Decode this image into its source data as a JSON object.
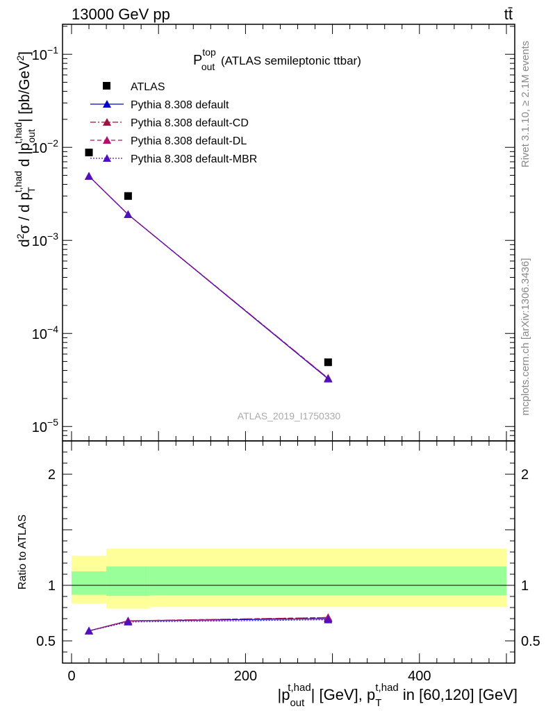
{
  "header": {
    "energy_label": "13000 GeV pp",
    "process_label": "tt̄"
  },
  "side_labels": {
    "rivet": "Rivet 3.1.10, ≥ 2.1M events",
    "mcplots": "mcplots.cern.ch [arXiv:1306.3436]"
  },
  "chart_data": [
    {
      "type": "scatter",
      "panel": "main",
      "title": "P_out^top (ATLAS semileptonic ttbar)",
      "title_main": "P",
      "title_sub": "out",
      "title_sup": "top",
      "title_rest": " (ATLAS semileptonic ttbar)",
      "analysis_id": "ATLAS_2019_I1750330",
      "ylabel": "d²σ / d p_T^{t,had} d |p_out^{t,had}| [pb/GeV²]",
      "yscale": "log",
      "ylim": [
        7e-06,
        0.21
      ],
      "xlim": [
        -15,
        505
      ],
      "y_tick_labels": [
        {
          "base": "10",
          "exp": "−1",
          "value": 0.1
        },
        {
          "base": "10",
          "exp": "−2",
          "value": 0.01
        },
        {
          "base": "10",
          "exp": "−3",
          "value": 0.001
        },
        {
          "base": "10",
          "exp": "−4",
          "value": 0.0001
        },
        {
          "base": "10",
          "exp": "−5",
          "value": 1e-05
        }
      ],
      "legend_position": "top-left",
      "series": [
        {
          "name": "ATLAS",
          "marker": "square",
          "color": "#000000",
          "x": [
            20,
            65,
            295
          ],
          "y": [
            0.0088,
            0.003,
            4.9e-05
          ]
        },
        {
          "name": "Pythia 8.308 default",
          "marker": "triangle",
          "line": "solid",
          "color": "#0000cc",
          "x": [
            20,
            65,
            295
          ],
          "y": [
            0.0049,
            0.0019,
            3.25e-05
          ]
        },
        {
          "name": "Pythia 8.308 default-CD",
          "marker": "triangle",
          "line": "dashdot",
          "color": "#a01040",
          "x": [
            20,
            65,
            295
          ],
          "y": [
            0.0049,
            0.0019,
            3.3e-05
          ]
        },
        {
          "name": "Pythia 8.308 default-DL",
          "marker": "triangle",
          "line": "dashed",
          "color": "#b0106a",
          "x": [
            20,
            65,
            295
          ],
          "y": [
            0.0049,
            0.0019,
            3.3e-05
          ]
        },
        {
          "name": "Pythia 8.308 default-MBR",
          "marker": "triangle",
          "line": "dotted",
          "color": "#5010c0",
          "x": [
            20,
            65,
            295
          ],
          "y": [
            0.0049,
            0.0019,
            3.25e-05
          ]
        }
      ]
    },
    {
      "type": "line",
      "panel": "ratio",
      "ylabel": "Ratio to ATLAS",
      "xlabel": "|p_out^{t,had}| [GeV], p_T^{t,had} in [60,120] [GeV]",
      "xlim": [
        -15,
        505
      ],
      "ylim": [
        0.3,
        2.3
      ],
      "x_tick_labels": [
        "0",
        "200",
        "400"
      ],
      "y_tick_labels": [
        "0.5",
        "1",
        "2"
      ],
      "bands": [
        {
          "x_lo": 0,
          "x_hi": 40,
          "stat_lo": 0.915,
          "stat_hi": 1.125,
          "tot_lo": 0.835,
          "tot_hi": 1.265
        },
        {
          "x_lo": 40,
          "x_hi": 90,
          "stat_lo": 0.905,
          "stat_hi": 1.17,
          "tot_lo": 0.79,
          "tot_hi": 1.33
        },
        {
          "x_lo": 90,
          "x_hi": 500,
          "stat_lo": 0.91,
          "stat_hi": 1.17,
          "tot_lo": 0.805,
          "tot_hi": 1.33
        }
      ],
      "band_colors": {
        "stat": "#99ff99",
        "total": "#ffff99"
      },
      "series": [
        {
          "name": "Pythia 8.308 default",
          "color": "#0000cc",
          "line": "solid",
          "x": [
            20,
            65,
            295
          ],
          "y": [
            0.59,
            0.68,
            0.7
          ]
        },
        {
          "name": "Pythia 8.308 default-CD",
          "color": "#a01040",
          "line": "dashdot",
          "x": [
            20,
            65,
            295
          ],
          "y": [
            0.59,
            0.68,
            0.71
          ]
        },
        {
          "name": "Pythia 8.308 default-DL",
          "color": "#b0106a",
          "line": "dashed",
          "x": [
            20,
            65,
            295
          ],
          "y": [
            0.59,
            0.68,
            0.71
          ]
        },
        {
          "name": "Pythia 8.308 default-MBR",
          "color": "#5010c0",
          "line": "dotted",
          "x": [
            20,
            65,
            295
          ],
          "y": [
            0.59,
            0.67,
            0.69
          ]
        }
      ]
    }
  ]
}
